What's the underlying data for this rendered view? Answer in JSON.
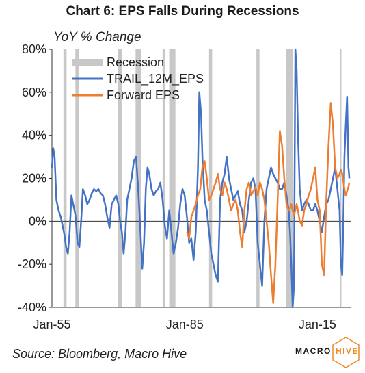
{
  "chart_data": {
    "type": "line",
    "title": "Chart 6: EPS Falls During Recessions",
    "ylabel": "YoY % Change",
    "xlabel": "",
    "ylim": [
      -40,
      80
    ],
    "yticks": [
      "80%",
      "60%",
      "40%",
      "20%",
      "0%",
      "-20%",
      "-40%"
    ],
    "ytick_values": [
      80,
      60,
      40,
      20,
      0,
      -20,
      -40
    ],
    "xlim": [
      1955.0,
      2022.5
    ],
    "xticks": [
      "Jan-55",
      "Jan-85",
      "Jan-15"
    ],
    "xtick_values": [
      1955.0,
      1985.0,
      2015.0
    ],
    "legend_position": "top-left",
    "recession_label": "Recession",
    "recession_color": "#c8c8c8",
    "recessions": [
      [
        1957.6,
        1958.3
      ],
      [
        1960.3,
        1961.1
      ],
      [
        1969.9,
        1970.9
      ],
      [
        1973.9,
        1975.2
      ],
      [
        1980.0,
        1980.5
      ],
      [
        1981.5,
        1982.9
      ],
      [
        1990.5,
        1991.2
      ],
      [
        2001.2,
        2001.9
      ],
      [
        2007.9,
        2009.5
      ],
      [
        2020.1,
        2020.4
      ]
    ],
    "series": [
      {
        "name": "TRAIL_12M_EPS",
        "color": "#4472c4",
        "x": [
          1955.0,
          1955.3,
          1955.6,
          1956.0,
          1956.5,
          1957.0,
          1957.4,
          1957.8,
          1958.2,
          1958.6,
          1959.0,
          1959.4,
          1959.8,
          1960.3,
          1960.8,
          1961.2,
          1961.6,
          1962.0,
          1962.5,
          1963.0,
          1963.5,
          1964.0,
          1964.5,
          1965.0,
          1965.5,
          1966.0,
          1966.5,
          1967.0,
          1967.5,
          1968.0,
          1968.5,
          1969.0,
          1969.5,
          1970.0,
          1970.4,
          1970.8,
          1971.2,
          1971.6,
          1972.0,
          1972.5,
          1973.0,
          1973.5,
          1974.0,
          1974.5,
          1975.0,
          1975.4,
          1975.8,
          1976.2,
          1976.6,
          1977.0,
          1977.5,
          1978.0,
          1978.5,
          1979.0,
          1979.5,
          1980.0,
          1980.5,
          1981.0,
          1981.5,
          1982.0,
          1982.5,
          1983.0,
          1983.5,
          1984.0,
          1984.5,
          1985.0,
          1985.5,
          1986.0,
          1986.5,
          1987.0,
          1987.5,
          1988.0,
          1988.3,
          1988.7,
          1989.0,
          1989.5,
          1990.0,
          1990.5,
          1991.0,
          1991.5,
          1992.0,
          1992.5,
          1993.0,
          1993.5,
          1994.0,
          1994.5,
          1995.0,
          1995.5,
          1996.0,
          1996.5,
          1997.0,
          1997.5,
          1998.0,
          1998.5,
          1999.0,
          1999.5,
          2000.0,
          2000.5,
          2001.0,
          2001.5,
          2002.0,
          2002.5,
          2003.0,
          2003.5,
          2004.0,
          2004.5,
          2005.0,
          2005.5,
          2006.0,
          2006.5,
          2007.0,
          2007.5,
          2008.0,
          2008.5,
          2008.8,
          2009.1,
          2009.4,
          2009.7,
          2010.0,
          2010.3,
          2010.6,
          2011.0,
          2011.5,
          2012.0,
          2012.5,
          2013.0,
          2013.5,
          2014.0,
          2014.5,
          2015.0,
          2015.5,
          2016.0,
          2016.5,
          2017.0,
          2017.5,
          2018.0,
          2018.5,
          2019.0,
          2019.5,
          2020.0,
          2020.3,
          2020.6,
          2020.9,
          2021.1,
          2021.4,
          2021.7,
          2022.0,
          2022.2
        ],
        "values": [
          25,
          34,
          30,
          10,
          5,
          2,
          -2,
          -6,
          -12,
          -15,
          -5,
          12,
          8,
          3,
          -10,
          -12,
          0,
          15,
          12,
          8,
          10,
          13,
          15,
          14,
          15,
          13,
          12,
          8,
          2,
          -3,
          8,
          10,
          12,
          8,
          0,
          -5,
          -15,
          -5,
          10,
          15,
          20,
          28,
          30,
          15,
          -5,
          -22,
          -10,
          15,
          25,
          22,
          15,
          12,
          14,
          15,
          18,
          10,
          -2,
          -8,
          5,
          -5,
          -15,
          -10,
          -3,
          8,
          15,
          12,
          2,
          -10,
          -8,
          -18,
          -5,
          25,
          60,
          50,
          30,
          10,
          5,
          -5,
          -15,
          -20,
          -25,
          -28,
          10,
          18,
          22,
          30,
          20,
          15,
          10,
          12,
          14,
          8,
          5,
          -5,
          0,
          10,
          18,
          20,
          15,
          -10,
          -20,
          -30,
          0,
          15,
          20,
          25,
          22,
          20,
          18,
          15,
          15,
          18,
          12,
          5,
          -5,
          -20,
          -40,
          -30,
          80,
          70,
          40,
          15,
          5,
          8,
          10,
          8,
          5,
          5,
          8,
          5,
          0,
          -5,
          2,
          8,
          10,
          15,
          20,
          25,
          15,
          5,
          -20,
          -25,
          5,
          30,
          45,
          58,
          25,
          20
        ]
      },
      {
        "name": "Forward EPS",
        "color": "#ed7d31",
        "x": [
          1985.5,
          1986.0,
          1986.5,
          1987.0,
          1987.5,
          1988.0,
          1988.5,
          1989.0,
          1989.5,
          1990.0,
          1990.5,
          1991.0,
          1991.5,
          1992.0,
          1992.5,
          1993.0,
          1993.5,
          1994.0,
          1994.5,
          1995.0,
          1995.5,
          1996.0,
          1996.5,
          1997.0,
          1997.5,
          1998.0,
          1998.5,
          1999.0,
          1999.5,
          2000.0,
          2000.5,
          2001.0,
          2001.5,
          2002.0,
          2002.5,
          2003.0,
          2003.5,
          2004.0,
          2004.5,
          2005.0,
          2005.5,
          2006.0,
          2006.5,
          2007.0,
          2007.5,
          2008.0,
          2008.5,
          2008.8,
          2009.1,
          2009.4,
          2009.7,
          2010.0,
          2010.3,
          2010.6,
          2011.0,
          2011.5,
          2012.0,
          2012.5,
          2013.0,
          2013.5,
          2014.0,
          2014.5,
          2015.0,
          2015.5,
          2016.0,
          2016.5,
          2017.0,
          2017.5,
          2018.0,
          2018.5,
          2019.0,
          2019.5,
          2020.0,
          2020.3,
          2020.6,
          2020.9,
          2021.1,
          2021.4,
          2021.7,
          2022.0,
          2022.2
        ],
        "values": [
          -5,
          -8,
          2,
          5,
          8,
          12,
          15,
          25,
          28,
          20,
          10,
          12,
          15,
          18,
          22,
          15,
          12,
          18,
          15,
          10,
          5,
          8,
          10,
          5,
          -5,
          -12,
          5,
          15,
          18,
          12,
          14,
          16,
          12,
          18,
          15,
          10,
          0,
          -10,
          -25,
          -38,
          -20,
          10,
          42,
          35,
          20,
          8,
          5,
          6,
          8,
          5,
          3,
          5,
          8,
          5,
          0,
          -2,
          5,
          8,
          12,
          15,
          20,
          25,
          10,
          5,
          -20,
          -25,
          10,
          35,
          55,
          45,
          25,
          20,
          22,
          24,
          22,
          18,
          15,
          12,
          14,
          16,
          18
        ]
      }
    ]
  },
  "footer": {
    "source": "Source: Bloomberg, Macro Hive",
    "logo_left": "MACRO",
    "logo_right": "HIVE",
    "logo_left_color": "#1a1a1a",
    "logo_right_color": "#f08a24"
  }
}
